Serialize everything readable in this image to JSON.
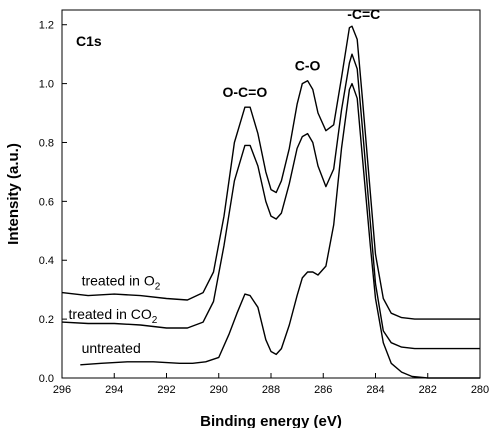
{
  "chart_data": {
    "type": "line",
    "title": "",
    "panel_label": "C1s",
    "xlabel": "Binding energy (eV)",
    "ylabel": "Intensity (a.u.)",
    "xlim": [
      296,
      280
    ],
    "ylim": [
      0.0,
      1.25
    ],
    "x_reversed": true,
    "xticks": [
      296,
      294,
      292,
      290,
      288,
      286,
      284,
      282,
      280
    ],
    "yticks": [
      0.0,
      0.2,
      0.4,
      0.6,
      0.8,
      1.0,
      1.2
    ],
    "ytick_labels": [
      "0.0",
      "0.2",
      "0.4",
      "0.6",
      "0.8",
      "1.0",
      "1.2"
    ],
    "grid": false,
    "line_color": "#000000",
    "series": [
      {
        "name": "treated in O",
        "subscript": "2",
        "points": [
          [
            296,
            0.29
          ],
          [
            295,
            0.28
          ],
          [
            294,
            0.285
          ],
          [
            293,
            0.28
          ],
          [
            292,
            0.27
          ],
          [
            291.2,
            0.265
          ],
          [
            290.6,
            0.29
          ],
          [
            290.2,
            0.36
          ],
          [
            289.8,
            0.55
          ],
          [
            289.4,
            0.8
          ],
          [
            289.0,
            0.92
          ],
          [
            288.8,
            0.92
          ],
          [
            288.5,
            0.83
          ],
          [
            288.2,
            0.7
          ],
          [
            288.0,
            0.64
          ],
          [
            287.8,
            0.63
          ],
          [
            287.6,
            0.67
          ],
          [
            287.3,
            0.78
          ],
          [
            287.0,
            0.93
          ],
          [
            286.8,
            1.0
          ],
          [
            286.6,
            1.01
          ],
          [
            286.4,
            0.98
          ],
          [
            286.2,
            0.9
          ],
          [
            285.9,
            0.84
          ],
          [
            285.6,
            0.86
          ],
          [
            285.3,
            1.02
          ],
          [
            285.0,
            1.19
          ],
          [
            284.9,
            1.195
          ],
          [
            284.7,
            1.15
          ],
          [
            284.5,
            0.95
          ],
          [
            284.2,
            0.63
          ],
          [
            284.0,
            0.42
          ],
          [
            283.7,
            0.27
          ],
          [
            283.4,
            0.22
          ],
          [
            283.0,
            0.205
          ],
          [
            282.5,
            0.2
          ],
          [
            282.0,
            0.2
          ],
          [
            281.0,
            0.2
          ],
          [
            280.0,
            0.2
          ]
        ]
      },
      {
        "name": "treated in CO",
        "subscript": "2",
        "points": [
          [
            296,
            0.19
          ],
          [
            295,
            0.185
          ],
          [
            294,
            0.185
          ],
          [
            293,
            0.18
          ],
          [
            292,
            0.17
          ],
          [
            291.2,
            0.17
          ],
          [
            290.6,
            0.19
          ],
          [
            290.2,
            0.26
          ],
          [
            289.8,
            0.45
          ],
          [
            289.4,
            0.67
          ],
          [
            289.0,
            0.79
          ],
          [
            288.8,
            0.79
          ],
          [
            288.5,
            0.72
          ],
          [
            288.2,
            0.6
          ],
          [
            288.0,
            0.55
          ],
          [
            287.8,
            0.54
          ],
          [
            287.6,
            0.56
          ],
          [
            287.3,
            0.66
          ],
          [
            287.0,
            0.78
          ],
          [
            286.8,
            0.82
          ],
          [
            286.6,
            0.83
          ],
          [
            286.4,
            0.8
          ],
          [
            286.2,
            0.72
          ],
          [
            285.9,
            0.65
          ],
          [
            285.6,
            0.71
          ],
          [
            285.3,
            0.91
          ],
          [
            285.0,
            1.07
          ],
          [
            284.9,
            1.1
          ],
          [
            284.7,
            1.05
          ],
          [
            284.5,
            0.85
          ],
          [
            284.2,
            0.53
          ],
          [
            284.0,
            0.32
          ],
          [
            283.7,
            0.16
          ],
          [
            283.4,
            0.12
          ],
          [
            283.0,
            0.105
          ],
          [
            282.5,
            0.1
          ],
          [
            282.0,
            0.1
          ],
          [
            281.0,
            0.1
          ],
          [
            280.0,
            0.1
          ]
        ]
      },
      {
        "name": "untreated",
        "subscript": "",
        "points": [
          [
            295.3,
            0.045
          ],
          [
            294.5,
            0.05
          ],
          [
            293.5,
            0.055
          ],
          [
            292.5,
            0.055
          ],
          [
            291.5,
            0.05
          ],
          [
            291.0,
            0.05
          ],
          [
            290.5,
            0.055
          ],
          [
            290.0,
            0.07
          ],
          [
            289.6,
            0.15
          ],
          [
            289.3,
            0.22
          ],
          [
            289.0,
            0.285
          ],
          [
            288.8,
            0.28
          ],
          [
            288.5,
            0.24
          ],
          [
            288.2,
            0.13
          ],
          [
            288.0,
            0.09
          ],
          [
            287.8,
            0.08
          ],
          [
            287.6,
            0.1
          ],
          [
            287.3,
            0.18
          ],
          [
            287.0,
            0.28
          ],
          [
            286.8,
            0.34
          ],
          [
            286.6,
            0.36
          ],
          [
            286.4,
            0.36
          ],
          [
            286.2,
            0.35
          ],
          [
            285.9,
            0.38
          ],
          [
            285.6,
            0.52
          ],
          [
            285.3,
            0.78
          ],
          [
            285.0,
            0.98
          ],
          [
            284.9,
            1.0
          ],
          [
            284.7,
            0.95
          ],
          [
            284.5,
            0.75
          ],
          [
            284.2,
            0.45
          ],
          [
            284.0,
            0.27
          ],
          [
            283.7,
            0.12
          ],
          [
            283.4,
            0.05
          ],
          [
            283.0,
            0.02
          ],
          [
            282.6,
            0.005
          ],
          [
            282.0,
            0.0
          ],
          [
            281.0,
            0.0
          ],
          [
            280.0,
            0.0
          ]
        ]
      }
    ],
    "annotations": [
      {
        "text": "O-C=O",
        "x": 289.0,
        "y": 0.955
      },
      {
        "text": "C-O",
        "x": 286.6,
        "y": 1.045
      },
      {
        "text": "-C=C",
        "x": 284.45,
        "y": 1.22
      }
    ],
    "series_labels": [
      {
        "series": 0,
        "x": 295.25,
        "y": 0.315
      },
      {
        "series": 1,
        "x": 295.75,
        "y": 0.2
      },
      {
        "series": 2,
        "x": 295.25,
        "y": 0.085
      }
    ]
  }
}
